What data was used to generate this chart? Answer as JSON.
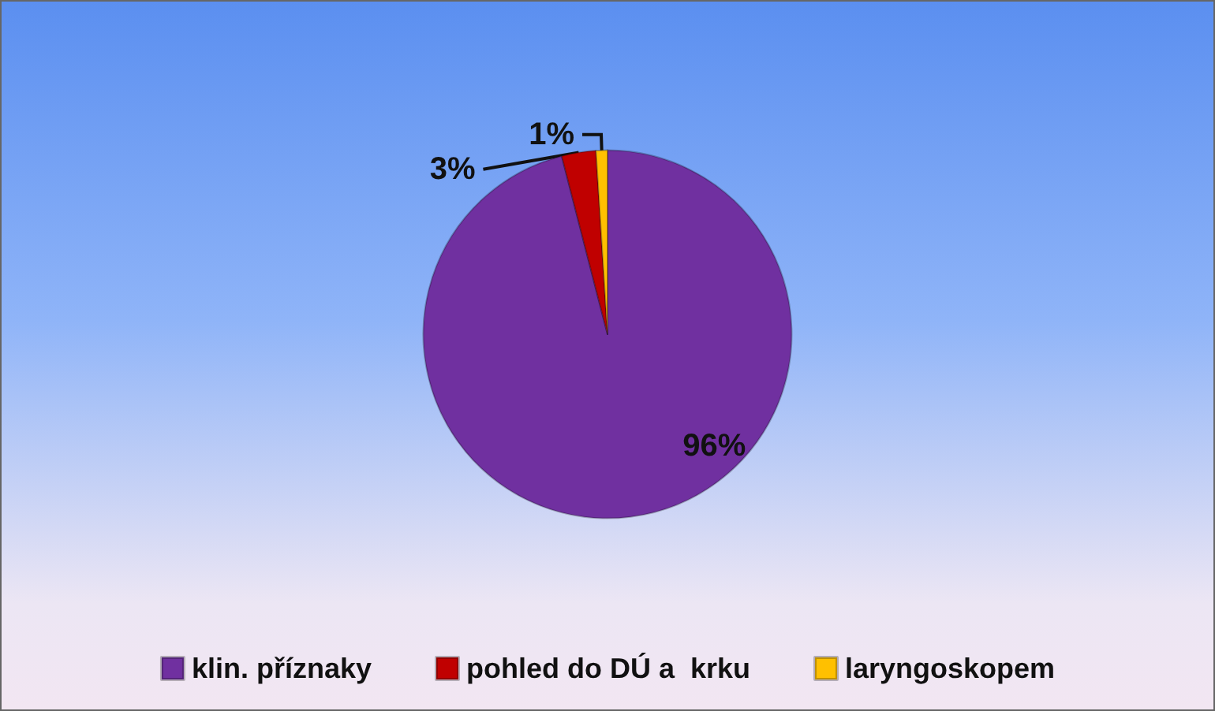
{
  "chart_data": {
    "type": "pie",
    "categories": [
      "klin. příznaky",
      "pohled do DÚ a  krku",
      "laryngoskopem"
    ],
    "values": [
      96,
      3,
      1
    ],
    "colors": [
      "#7030a0",
      "#c00000",
      "#ffc000"
    ],
    "value_labels": [
      "96%",
      "3%",
      "1%"
    ],
    "legend": "bottom"
  }
}
